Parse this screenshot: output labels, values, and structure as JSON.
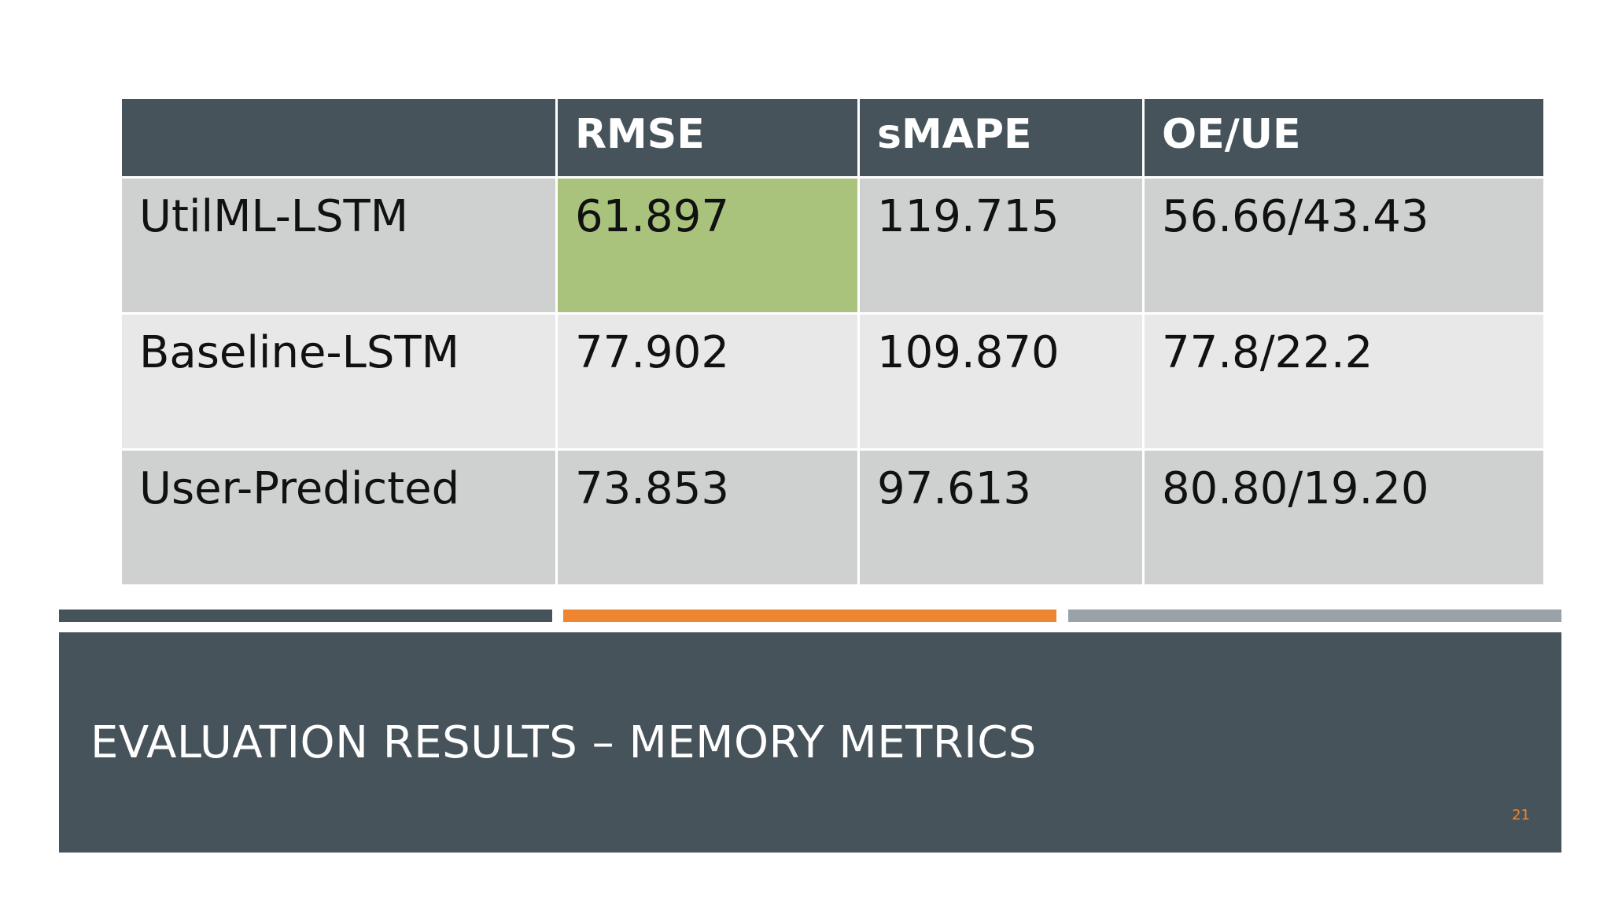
{
  "table": {
    "headers": [
      "",
      "RMSE",
      "sMAPE",
      "OE/UE"
    ],
    "rows": [
      {
        "cells": [
          "UtilML-LSTM",
          "61.897",
          "119.715",
          "56.66/43.43"
        ]
      },
      {
        "cells": [
          "Baseline-LSTM",
          "77.902",
          "109.870",
          "77.8/22.2"
        ]
      },
      {
        "cells": [
          "User-Predicted",
          "73.853",
          "97.613",
          "80.80/19.20"
        ]
      }
    ],
    "highlight_cell": {
      "row": 0,
      "col": 1
    },
    "colors": {
      "header_bg": "#47535b",
      "row_dark_bg": "#cfd1d0",
      "row_light_bg": "#e8e8e8",
      "highlight_bg": "#a9c37d"
    }
  },
  "decor": {
    "bar_colors": [
      "#47535b",
      "#ee8530",
      "#9aa2a9"
    ]
  },
  "slide": {
    "title": "EVALUATION RESULTS – MEMORY METRICS",
    "number": "21",
    "accent_color": "#ee8530"
  }
}
